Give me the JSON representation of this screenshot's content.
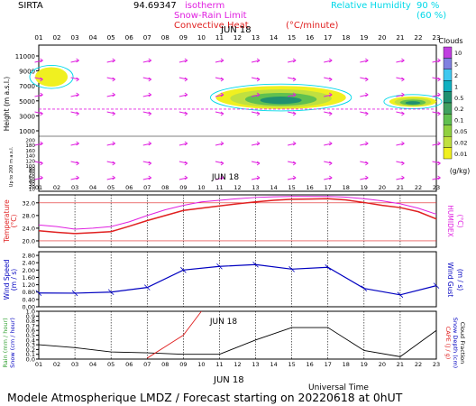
{
  "header": {
    "station": "SIRTA",
    "code": "94.69347",
    "legend_isotherm": "0°C isotherm",
    "legend_isotherm_suffix": "isotherm",
    "legend_snow_rain": "Snow-Rain Limit",
    "legend_convective": "Convective Heat.",
    "legend_convective_unit": "(°C/minute)",
    "legend_rh": "Relative Humidity",
    "legend_rh_90": "90 %",
    "legend_rh_60": "(60 %)"
  },
  "date_label": "JUN 18",
  "hours": [
    "01",
    "02",
    "03",
    "04",
    "05",
    "06",
    "07",
    "08",
    "09",
    "10",
    "11",
    "12",
    "13",
    "14",
    "15",
    "16",
    "17",
    "18",
    "19",
    "20",
    "21",
    "22",
    "23"
  ],
  "footer": {
    "universal_time": "Universal Time",
    "model_caption": "Modele Atmospherique LMDZ / Forecast starting on 20220618 at 0hUT"
  },
  "colors": {
    "magenta": "#e020e0",
    "cyan": "#00d8e8",
    "red": "#e02020",
    "blue": "#0000c0",
    "black": "#000000",
    "yellow": "#f0f020"
  },
  "chart_data": [
    {
      "type": "heatmap",
      "panel": "clouds",
      "ylabel": "Height (m a.s.l.)",
      "ylabel_low": "Up to 200 m a.s.l.",
      "y_ticks_high": [
        1000,
        3000,
        5000,
        7000,
        9000,
        11000
      ],
      "y_ticks_low": [
        10,
        20,
        30,
        40,
        50,
        60,
        70,
        80,
        90,
        100,
        120,
        140,
        160,
        180,
        200
      ],
      "colorbar_title": "Clouds",
      "colorbar_unit": "(g/kg)",
      "colorbar_ticks": [
        "0.01",
        "0.02",
        "0.05",
        "0.1",
        "0.2",
        "0.5",
        "1",
        "2",
        "5",
        "10"
      ],
      "isotherm_0c_m": 3900,
      "cloud_layers": [
        {
          "hour_start": 1,
          "hour_end": 2.6,
          "base_m": 6900,
          "top_m": 9500,
          "max_gkg": 0.02
        },
        {
          "hour_start": 11,
          "hour_end": 18,
          "base_m": 3900,
          "top_m": 7000,
          "max_gkg": 1
        },
        {
          "hour_start": 20.6,
          "hour_end": 23,
          "base_m": 4200,
          "top_m": 5600,
          "max_gkg": 0.5
        }
      ]
    },
    {
      "type": "line",
      "panel": "temperature",
      "ylabel": "Temperature (°C)",
      "ylabel_right": "HUMIDEX (°C)",
      "y_ticks": [
        20.0,
        24.0,
        28.0,
        32.0
      ],
      "ylim": [
        18,
        34.5
      ],
      "x": [
        1,
        2,
        3,
        4,
        5,
        6,
        7,
        8,
        9,
        10,
        11,
        12,
        13,
        14,
        15,
        16,
        17,
        18,
        19,
        20,
        21,
        22,
        23
      ],
      "series": [
        {
          "name": "Temperature",
          "values": [
            23.2,
            22.7,
            22.3,
            22.6,
            22.9,
            24.6,
            26.4,
            28.0,
            29.6,
            30.3,
            31.0,
            31.7,
            32.3,
            32.8,
            33.1,
            33.2,
            33.3,
            32.9,
            32.1,
            31.2,
            30.5,
            29.2,
            26.9
          ]
        },
        {
          "name": "HUMIDEX",
          "values": [
            25.0,
            24.5,
            23.7,
            24.0,
            24.5,
            26.0,
            28.0,
            29.8,
            31.2,
            32.3,
            32.8,
            33.3,
            33.7,
            33.9,
            34.0,
            34.0,
            34.0,
            33.8,
            33.3,
            32.6,
            31.7,
            30.3,
            28.4
          ]
        }
      ]
    },
    {
      "type": "line",
      "panel": "wind",
      "ylabel": "Wind Speed (m / s)",
      "ylabel_right": "Wind Gust (m / s)",
      "y_ticks": [
        0.0,
        0.4,
        0.8,
        1.2,
        1.6,
        2.0,
        2.4,
        2.8
      ],
      "ylim": [
        0,
        3.0
      ],
      "x": [
        1,
        3,
        5,
        7,
        9,
        11,
        13,
        15,
        17,
        19,
        21,
        23
      ],
      "series": [
        {
          "name": "Wind Speed",
          "values": [
            0.75,
            0.74,
            0.8,
            1.05,
            2.0,
            2.2,
            2.3,
            2.05,
            2.15,
            1.0,
            0.65,
            1.15
          ]
        }
      ]
    },
    {
      "type": "line",
      "panel": "rain",
      "ylabel": "Rain (mm / hour)",
      "ylabel_snow": "Snow (cm / hour)",
      "ylabel_right": "CAPE (J / g)",
      "ylabel_right2": "Snow Depth (cm)",
      "ylabel_right3": "Cloud Fraction",
      "y_ticks": [
        0.0,
        0.1,
        0.2,
        0.3,
        0.4,
        0.5,
        0.6,
        0.7,
        0.8,
        0.9,
        1.0
      ],
      "ylim": [
        0,
        1.0
      ],
      "series": [
        {
          "name": "Cloud Fraction",
          "x": [
            1,
            3,
            5,
            7,
            9,
            11,
            13,
            15,
            17,
            19,
            21,
            23
          ],
          "values": [
            0.3,
            0.24,
            0.15,
            0.13,
            0.1,
            0.1,
            0.4,
            0.66,
            0.66,
            0.18,
            0.05,
            0.6
          ]
        },
        {
          "name": "CAPE",
          "x": [
            7,
            9,
            10
          ],
          "values": [
            0.02,
            0.5,
            1.0
          ]
        }
      ]
    }
  ]
}
